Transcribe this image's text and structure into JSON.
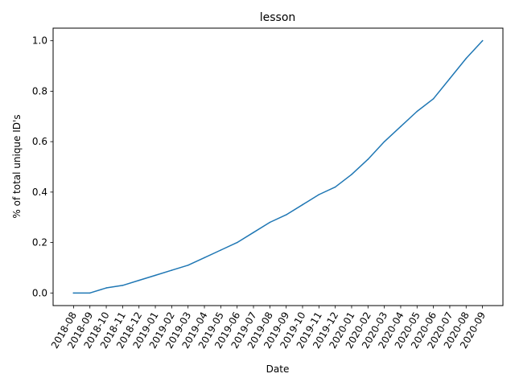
{
  "chart_data": {
    "type": "line",
    "title": "lesson",
    "xlabel": "Date",
    "ylabel": "% of total unique ID's",
    "categories": [
      "2018-08",
      "2018-09",
      "2018-10",
      "2018-11",
      "2018-12",
      "2019-01",
      "2019-02",
      "2019-03",
      "2019-04",
      "2019-05",
      "2019-06",
      "2019-07",
      "2019-08",
      "2019-09",
      "2019-10",
      "2019-11",
      "2019-12",
      "2020-01",
      "2020-02",
      "2020-03",
      "2020-04",
      "2020-05",
      "2020-06",
      "2020-07",
      "2020-08",
      "2020-09"
    ],
    "series": [
      {
        "values": [
          0.0,
          0.0,
          0.02,
          0.03,
          0.05,
          0.07,
          0.09,
          0.11,
          0.14,
          0.17,
          0.2,
          0.24,
          0.28,
          0.31,
          0.35,
          0.39,
          0.42,
          0.47,
          0.53,
          0.6,
          0.66,
          0.72,
          0.77,
          0.85,
          0.93,
          1.0
        ]
      }
    ],
    "yticks": [
      "0.0",
      "0.2",
      "0.4",
      "0.6",
      "0.8",
      "1.0"
    ],
    "ylim": [
      -0.05,
      1.05
    ],
    "grid": false,
    "legend": "none",
    "line_color": "#1f77b4"
  }
}
